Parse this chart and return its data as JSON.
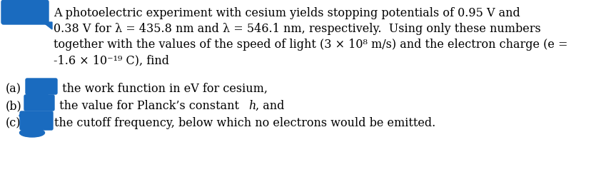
{
  "background_color": "#ffffff",
  "figsize": [
    8.63,
    2.69
  ],
  "dpi": 100,
  "line1": "A photoelectric experiment with cesium yields stopping potentials of 0.95 V and",
  "line2": "0.38 V for λ = 435.8 nm and λ = 546.1 nm, respectively.  Using only these numbers",
  "line3": "together with the values of the speed of light (3 × 10⁸ m/s) and the electron charge (e =",
  "line4": "-1.6 × 10⁻¹⁹ C), find",
  "sub_a_label": "(a)",
  "sub_a_text": " the work function in eV for cesium,",
  "sub_b_label": "(b)",
  "sub_b_text": " the value for Planck’s constant h, and",
  "sub_c_label": "(c)",
  "sub_c_text": "the cutoff frequency, below which no electrons would be emitted.",
  "font_size": 11.5,
  "font_color": "#000000",
  "blob_color": "#1a6bbf",
  "italic_h": "h"
}
